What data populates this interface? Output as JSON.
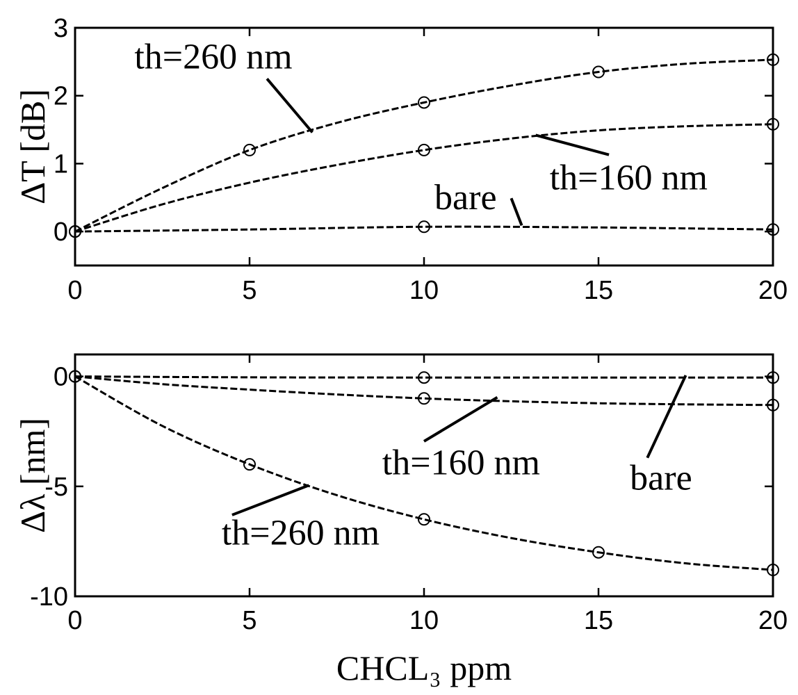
{
  "chart_data": [
    {
      "type": "line",
      "title": "",
      "xlabel": "",
      "ylabel": "ΔT [dB]",
      "xlim": [
        0,
        20
      ],
      "ylim": [
        -0.5,
        3
      ],
      "xticks": [
        "0",
        "5",
        "10",
        "15",
        "20"
      ],
      "yticks": [
        "0",
        "1",
        "2",
        "3"
      ],
      "series": [
        {
          "x": [
            0,
            5,
            10,
            15,
            20
          ],
          "y": [
            0,
            1.2,
            1.9,
            2.35,
            2.53
          ],
          "curve_x": [
            0,
            2.5,
            5,
            7.5,
            10,
            12.5,
            15,
            17.5,
            20
          ],
          "curve_y": [
            0,
            0.64,
            1.2,
            1.6,
            1.9,
            2.15,
            2.35,
            2.47,
            2.53
          ]
        },
        {
          "x": [
            0,
            10,
            20
          ],
          "y": [
            0,
            1.2,
            1.58
          ],
          "curve_x": [
            0,
            2.5,
            5,
            7.5,
            10,
            12.5,
            15,
            17.5,
            20
          ],
          "curve_y": [
            0,
            0.4,
            0.72,
            0.98,
            1.2,
            1.37,
            1.49,
            1.55,
            1.58
          ]
        },
        {
          "x": [
            0,
            10,
            20
          ],
          "y": [
            0,
            0.07,
            0.03
          ],
          "curve_x": [
            0,
            5,
            10,
            15,
            20
          ],
          "curve_y": [
            0,
            0.03,
            0.07,
            0.06,
            0.03
          ]
        }
      ],
      "annotations": [
        {
          "text": "th=260 nm",
          "x": 1.7,
          "y": 2.4,
          "anchor_x": 6.8,
          "anchor_y": 1.46,
          "label_x": 5.5,
          "label_y": 2.25
        },
        {
          "text": "th=160 nm",
          "x": 13.6,
          "y": 0.62,
          "anchor_x": 13.2,
          "anchor_y": 1.42,
          "label_x": 15.3,
          "label_y": 1.13
        },
        {
          "text": "bare",
          "x": 10.3,
          "y": 0.33,
          "anchor_x": 12.8,
          "anchor_y": 0.09,
          "label_x": 12.5,
          "label_y": 0.49
        }
      ]
    },
    {
      "type": "line",
      "title": "",
      "xlabel": "CHCL₃ ppm",
      "ylabel": "Δλ [nm]",
      "xlim": [
        0,
        20
      ],
      "ylim": [
        -10,
        1
      ],
      "xticks": [
        "0",
        "5",
        "10",
        "15",
        "20"
      ],
      "yticks": [
        "0",
        "-5",
        "-10"
      ],
      "series": [
        {
          "x": [
            0,
            10,
            20
          ],
          "y": [
            0,
            -0.05,
            -0.05
          ],
          "curve_x": [
            0,
            5,
            10,
            15,
            20
          ],
          "curve_y": [
            0,
            -0.04,
            -0.05,
            -0.05,
            -0.05
          ]
        },
        {
          "x": [
            0,
            10,
            20
          ],
          "y": [
            0,
            -1.0,
            -1.3
          ],
          "curve_x": [
            0,
            2.5,
            5,
            7.5,
            10,
            12.5,
            15,
            17.5,
            20
          ],
          "curve_y": [
            0,
            -0.35,
            -0.6,
            -0.82,
            -1.0,
            -1.13,
            -1.22,
            -1.27,
            -1.3
          ]
        },
        {
          "x": [
            0,
            5,
            10,
            15,
            20
          ],
          "y": [
            0,
            -4.0,
            -6.5,
            -8.0,
            -8.8
          ],
          "curve_x": [
            0,
            2.5,
            5,
            7.5,
            10,
            12.5,
            15,
            17.5,
            20
          ],
          "curve_y": [
            0,
            -2.25,
            -4.0,
            -5.4,
            -6.5,
            -7.35,
            -8.0,
            -8.5,
            -8.8
          ]
        }
      ],
      "annotations": [
        {
          "text": "th=160 nm",
          "x": 8.8,
          "y": -4.45,
          "anchor_x": 12.1,
          "anchor_y": -0.95,
          "label_x": 10.0,
          "label_y": -2.95
        },
        {
          "text": "bare",
          "x": 15.9,
          "y": -5.15,
          "anchor_x": 17.5,
          "anchor_y": 0.05,
          "label_x": 16.4,
          "label_y": -3.7
        },
        {
          "text": "th=260 nm",
          "x": 4.2,
          "y": -7.65,
          "anchor_x": 6.7,
          "anchor_y": -4.95,
          "label_x": 4.5,
          "label_y": -6.3
        }
      ]
    }
  ]
}
